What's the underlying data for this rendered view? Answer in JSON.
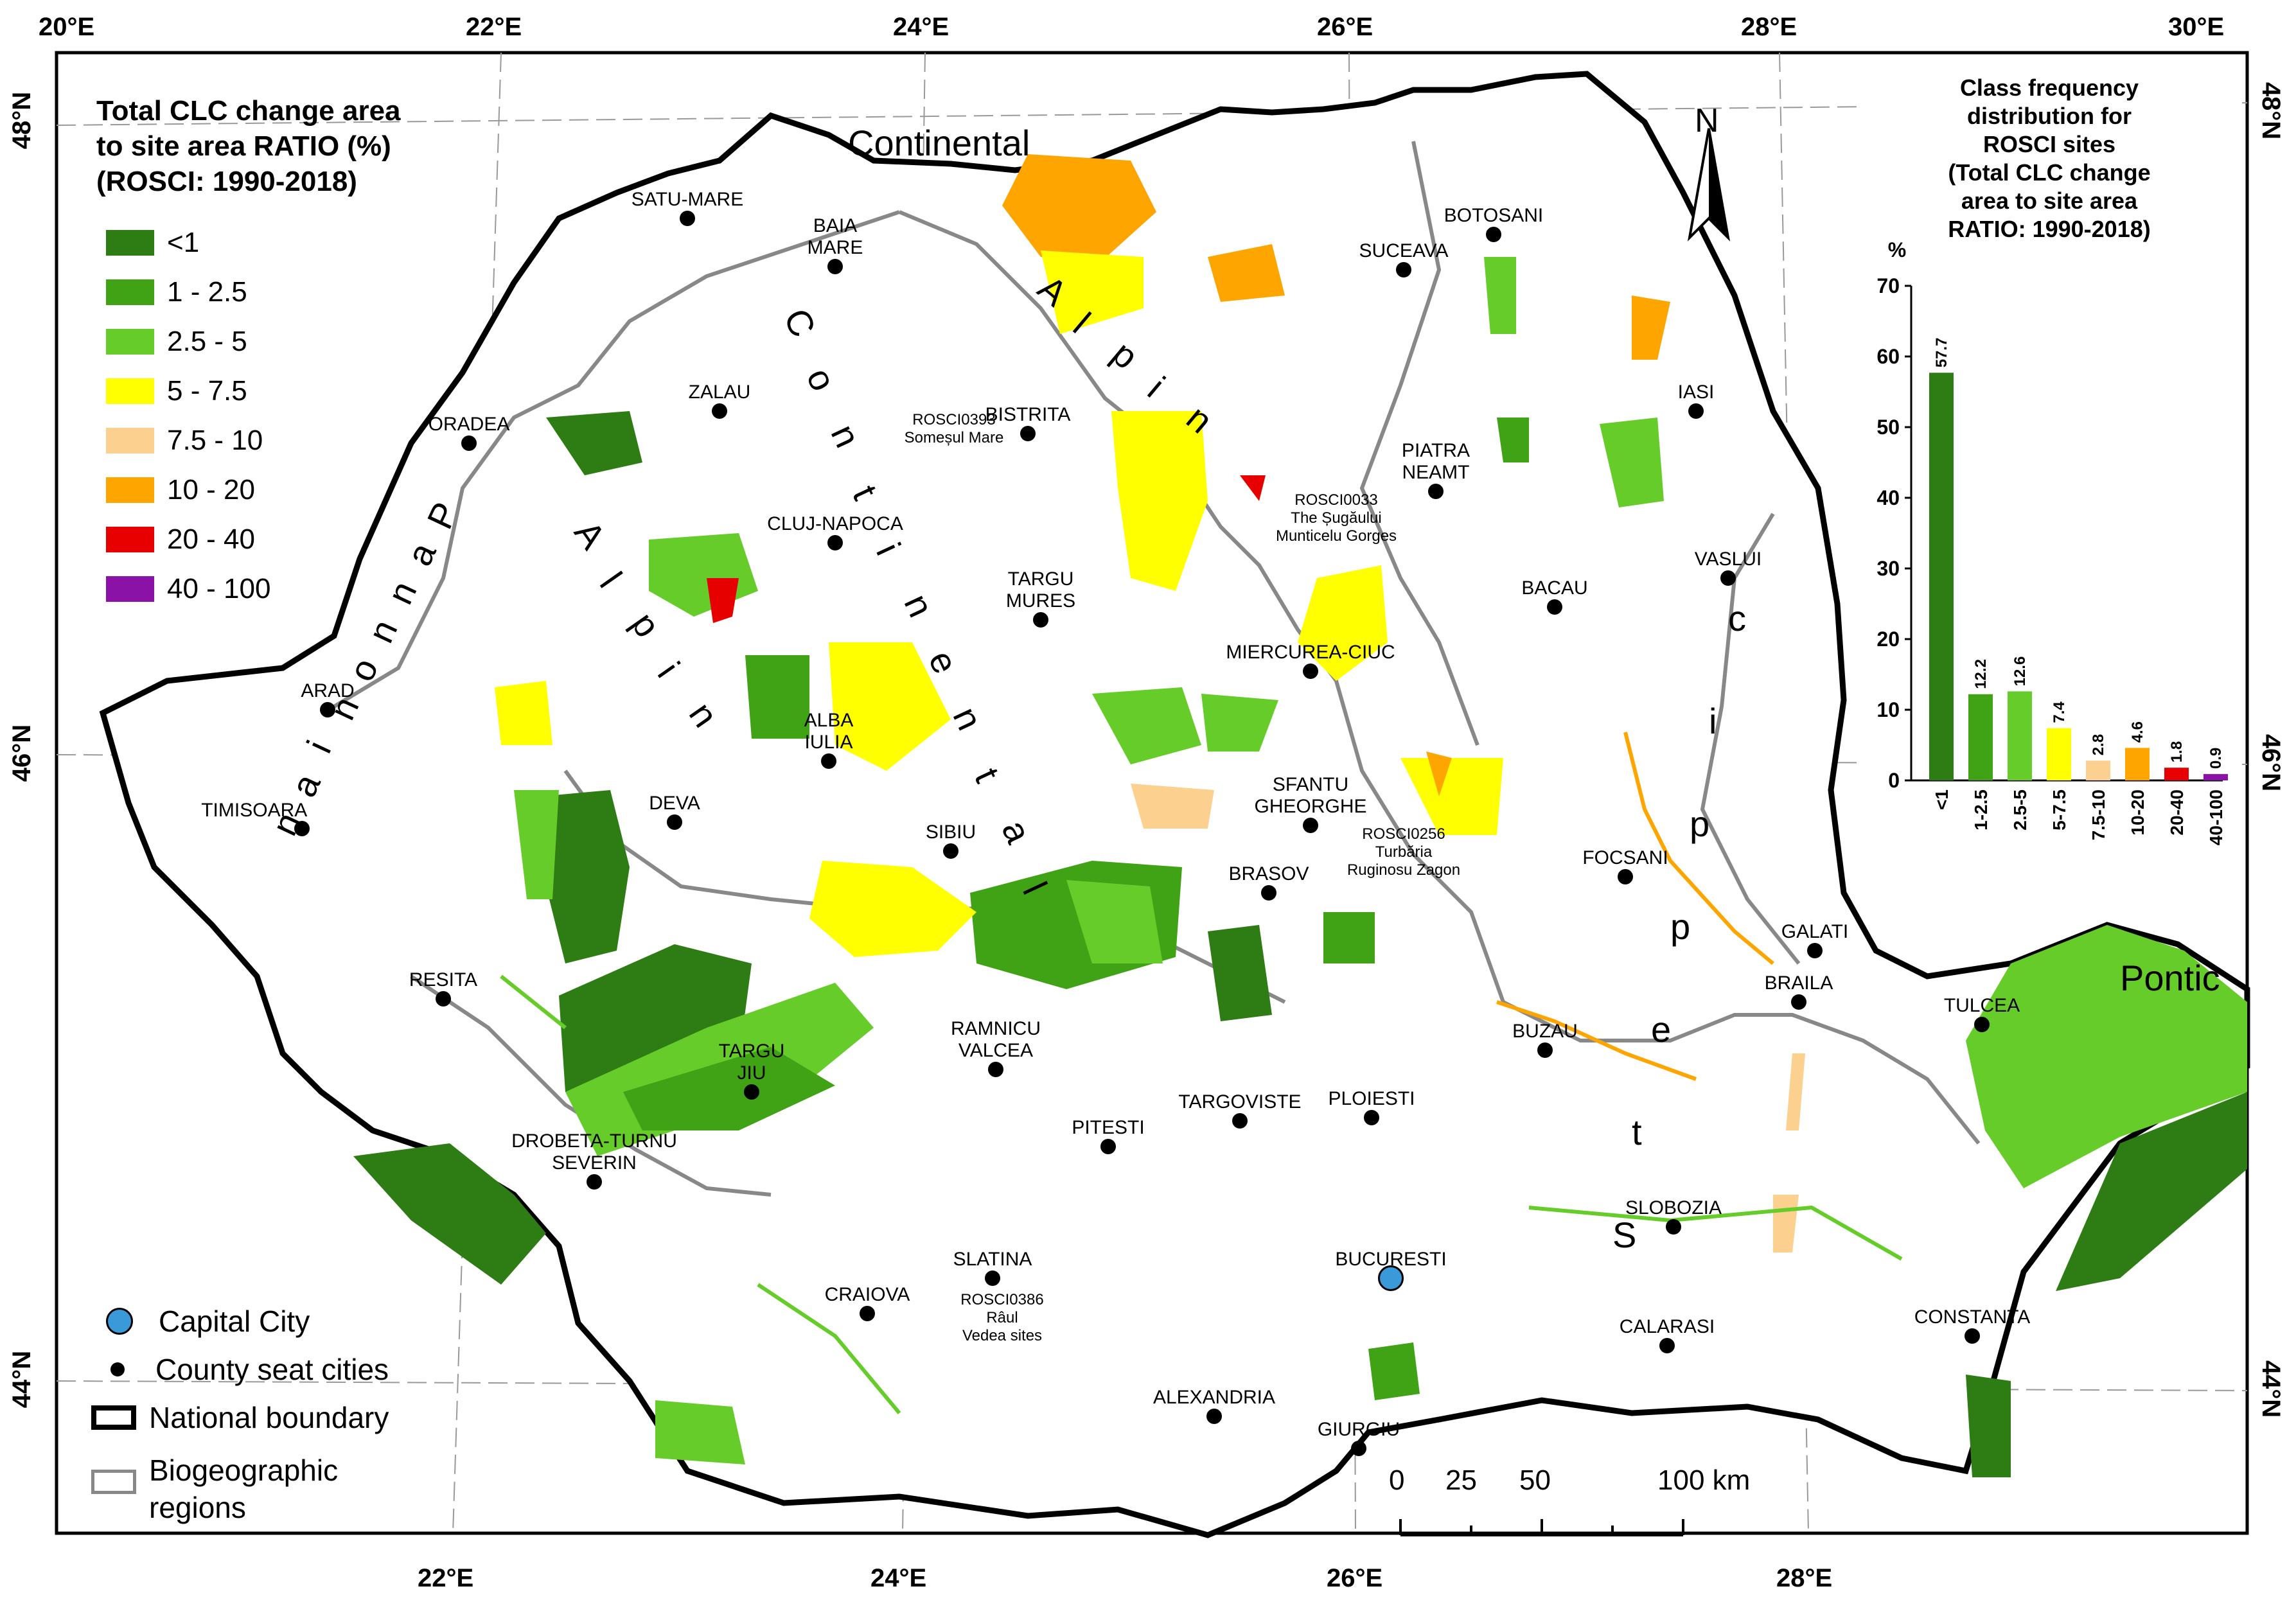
{
  "longitudes": {
    "top": [
      "20°E",
      "22°E",
      "24°E",
      "26°E",
      "28°E",
      "30°E"
    ],
    "bottom": [
      "22°E",
      "24°E",
      "26°E",
      "28°E"
    ]
  },
  "latitudes": {
    "left": [
      "48°N",
      "46°N",
      "44°N"
    ],
    "right": [
      "48°N",
      "46°N",
      "44°N"
    ]
  },
  "legend": {
    "title_lines": [
      "Total CLC change area",
      "to site area RATIO (%)",
      "(ROSCI: 1990-2018)"
    ],
    "classes": [
      {
        "label": "<1",
        "color": "#2e7d14"
      },
      {
        "label": "1 - 2.5",
        "color": "#3fa315"
      },
      {
        "label": "2.5 - 5",
        "color": "#66cc2a"
      },
      {
        "label": "5 - 7.5",
        "color": "#ffff00"
      },
      {
        "label": "7.5 - 10",
        "color": "#fcd08f"
      },
      {
        "label": "10 - 20",
        "color": "#ffa500"
      },
      {
        "label": "20 - 40",
        "color": "#e60000"
      },
      {
        "label": "40 - 100",
        "color": "#8a12a6"
      }
    ]
  },
  "bottom_legend": {
    "capital": "Capital City",
    "county": "County seat cities",
    "boundary": "National boundary",
    "regions_line1": "Biogeographic",
    "regions_line2": "regions"
  },
  "north_label": "N",
  "scale": {
    "ticks": [
      "0",
      "25",
      "50",
      "100 km"
    ]
  },
  "regions": {
    "continental_top": "Continental",
    "continental_diag": [
      "C",
      "o",
      "n",
      "t",
      "i",
      "n",
      "e",
      "n",
      "t",
      "a",
      "l"
    ],
    "alpine_upper": [
      "A",
      "l",
      "p",
      "i",
      "n"
    ],
    "alpine_lower": [
      "A",
      "l",
      "p",
      "i",
      "n"
    ],
    "pannonian": [
      "P",
      "a",
      "n",
      "n",
      "o",
      "n",
      "i",
      "a",
      "n"
    ],
    "steppic": [
      "S",
      "t",
      "e",
      "p",
      "p",
      "i",
      "c"
    ],
    "pontic": "Pontic"
  },
  "cities": [
    {
      "name": "SATU-MARE"
    },
    {
      "name": "BAIA MARE"
    },
    {
      "name": "BOTOSANI"
    },
    {
      "name": "SUCEAVA"
    },
    {
      "name": "ZALAU"
    },
    {
      "name": "BISTRITA"
    },
    {
      "name": "IASI"
    },
    {
      "name": "ORADEA"
    },
    {
      "name": "PIATRA NEAMT"
    },
    {
      "name": "CLUJ-NAPOCA"
    },
    {
      "name": "TARGU MURES"
    },
    {
      "name": "VASLUI"
    },
    {
      "name": "BACAU"
    },
    {
      "name": "MIERCUREA-CIUC"
    },
    {
      "name": "ARAD"
    },
    {
      "name": "ALBA IULIA"
    },
    {
      "name": "SFANTU GHEORGHE"
    },
    {
      "name": "DEVA"
    },
    {
      "name": "TIMISOARA"
    },
    {
      "name": "SIBIU"
    },
    {
      "name": "FOCSANI"
    },
    {
      "name": "BRASOV"
    },
    {
      "name": "GALATI"
    },
    {
      "name": "RESITA"
    },
    {
      "name": "BRAILA"
    },
    {
      "name": "TULCEA"
    },
    {
      "name": "RAMNICU VALCEA"
    },
    {
      "name": "BUZAU"
    },
    {
      "name": "TARGU JIU"
    },
    {
      "name": "TARGOVISTE"
    },
    {
      "name": "PLOIESTI"
    },
    {
      "name": "PITESTI"
    },
    {
      "name": "DROBETA-TURNU SEVERIN"
    },
    {
      "name": "SLOBOZIA"
    },
    {
      "name": "BUCURESTI"
    },
    {
      "name": "SLATINA"
    },
    {
      "name": "CRAIOVA"
    },
    {
      "name": "CALARASI"
    },
    {
      "name": "CONSTANTA"
    },
    {
      "name": "ALEXANDRIA"
    },
    {
      "name": "GIURGIU"
    }
  ],
  "site_labels": [
    {
      "lines": [
        "ROSCI0393",
        "Someșul Mare"
      ]
    },
    {
      "lines": [
        "ROSCI0033",
        "The Șugăului",
        "Munticelu Gorges"
      ]
    },
    {
      "lines": [
        "ROSCI0256",
        "Turbăria",
        "Ruginosu Zagon"
      ]
    },
    {
      "lines": [
        "ROSCI0386",
        "Râul",
        "Vedea sites"
      ]
    }
  ],
  "inset": {
    "title_lines": [
      "Class frequency",
      "distribution for",
      "ROSCI sites",
      "(Total CLC change",
      "area to site area",
      "RATIO: 1990-2018)"
    ]
  },
  "chart_data": {
    "type": "bar",
    "title": "Class frequency distribution for ROSCI sites (Total CLC change area to site area RATIO: 1990-2018)",
    "ylabel": "%",
    "categories": [
      "<1",
      "1-2.5",
      "2.5-5",
      "5-7.5",
      "7.5-10",
      "10-20",
      "20-40",
      "40-100"
    ],
    "values": [
      57.7,
      12.2,
      12.6,
      7.4,
      2.8,
      4.6,
      1.8,
      0.9
    ],
    "value_labels": [
      "57.7",
      "12.2",
      "12.6",
      "7.4",
      "2.8",
      "4.6",
      "1.8",
      "0.9"
    ],
    "colors": [
      "#2e7d14",
      "#3fa315",
      "#66cc2a",
      "#ffff00",
      "#fcd08f",
      "#ffa500",
      "#e60000",
      "#8a12a6"
    ],
    "ylim": [
      0,
      70
    ],
    "yticks": [
      "0",
      "10",
      "20",
      "30",
      "40",
      "50",
      "60",
      "70"
    ]
  }
}
